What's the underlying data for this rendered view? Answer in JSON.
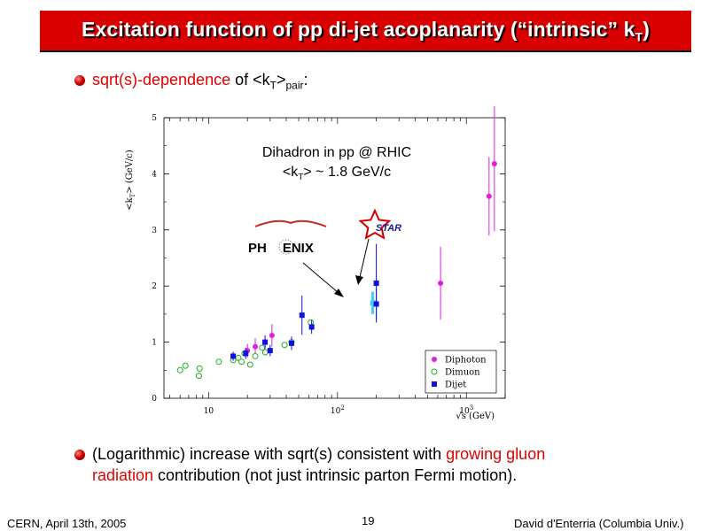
{
  "slide": {
    "title_main": "Excitation function of pp di-jet acoplanarity (“intrinsic” k",
    "title_sub": "T",
    "title_end": ")",
    "bullet1": {
      "a": "sqrt(s)-dependence",
      "b": " of <k",
      "sub1": "T",
      "c": ">",
      "sub2": "pair",
      "d": ":"
    },
    "bullet2": {
      "a": "(Logarithmic) increase with sqrt(s) consistent with ",
      "red1": "growing gluon",
      "red2": "radiation",
      "b": " contribution (not just intrinsic parton Fermi motion)."
    },
    "footer": {
      "left": "CERN, April 13th, 2005",
      "center": "19",
      "right": "David d'Enterria (Columbia Univ.)"
    }
  },
  "colors": {
    "title_bg": "#d90000",
    "accent_red": "#e00000",
    "diphoton": "#e020e0",
    "dimuon": "#20b020",
    "dijet": "#1010e0",
    "phenix_band": "#40d0f0"
  },
  "chart_data": {
    "type": "scatter",
    "x_scale": "log",
    "xlim": [
      4.5,
      2000
    ],
    "ylim": [
      0,
      5
    ],
    "x_ticks": [
      {
        "v": 10,
        "base": "10",
        "exp": ""
      },
      {
        "v": 100,
        "base": "10",
        "exp": "2"
      },
      {
        "v": 1000,
        "base": "10",
        "exp": "3"
      }
    ],
    "y_ticks": [
      0,
      1,
      2,
      3,
      4,
      5
    ],
    "xlabel": "√s (GeV)",
    "ylabel_a": "<k",
    "ylabel_sub": "T",
    "ylabel_b": "> (GeV/c)",
    "annotation": {
      "line1": "Dihadron in pp @ RHIC",
      "line2_a": "<k",
      "line2_sub": "T",
      "line2_b": "> ~ 1.8 GeV/c"
    },
    "logos": {
      "phenix_a": "PH",
      "phenix_b": "ENIX",
      "star": "STAR"
    },
    "legend": [
      "Diphoton",
      "Dimuon",
      "Dijet"
    ],
    "series": [
      {
        "name": "Diphoton",
        "marker": "filled-circle",
        "points": [
          {
            "x": 20,
            "y": 0.85,
            "err": 0.12
          },
          {
            "x": 23,
            "y": 0.92,
            "err": 0.15
          },
          {
            "x": 31,
            "y": 1.12,
            "err": 0.2
          },
          {
            "x": 630,
            "y": 2.05,
            "err": 0.65
          },
          {
            "x": 1500,
            "y": 3.6,
            "err": 0.7
          },
          {
            "x": 1650,
            "y": 4.18,
            "err": 1.2
          }
        ]
      },
      {
        "name": "Dimuon",
        "marker": "open-circle",
        "points": [
          {
            "x": 6,
            "y": 0.5
          },
          {
            "x": 6.6,
            "y": 0.58
          },
          {
            "x": 8.4,
            "y": 0.4
          },
          {
            "x": 8.5,
            "y": 0.53
          },
          {
            "x": 12,
            "y": 0.65
          },
          {
            "x": 15.5,
            "y": 0.68
          },
          {
            "x": 17,
            "y": 0.72
          },
          {
            "x": 18,
            "y": 0.65
          },
          {
            "x": 19,
            "y": 0.8
          },
          {
            "x": 21,
            "y": 0.6
          },
          {
            "x": 23,
            "y": 0.75
          },
          {
            "x": 26,
            "y": 0.9
          },
          {
            "x": 27.5,
            "y": 0.82
          },
          {
            "x": 38.8,
            "y": 0.95
          },
          {
            "x": 44,
            "y": 1.0
          },
          {
            "x": 62,
            "y": 1.35
          }
        ]
      },
      {
        "name": "Dijet",
        "marker": "filled-square",
        "points": [
          {
            "x": 15.5,
            "y": 0.75,
            "err": 0.08
          },
          {
            "x": 19.4,
            "y": 0.8,
            "err": 0.1
          },
          {
            "x": 27.4,
            "y": 1.0,
            "err": 0.12
          },
          {
            "x": 30,
            "y": 0.85,
            "err": 0.1
          },
          {
            "x": 44,
            "y": 0.98,
            "err": 0.12
          },
          {
            "x": 53,
            "y": 1.48,
            "err": 0.35
          },
          {
            "x": 63,
            "y": 1.27,
            "err": 0.12
          },
          {
            "x": 200,
            "y": 1.68,
            "err": 0.28
          },
          {
            "x": 200,
            "y": 2.05,
            "err": 0.7
          }
        ]
      }
    ],
    "phenix_point": {
      "x": 200,
      "y": 1.7,
      "err": 0.2
    }
  }
}
